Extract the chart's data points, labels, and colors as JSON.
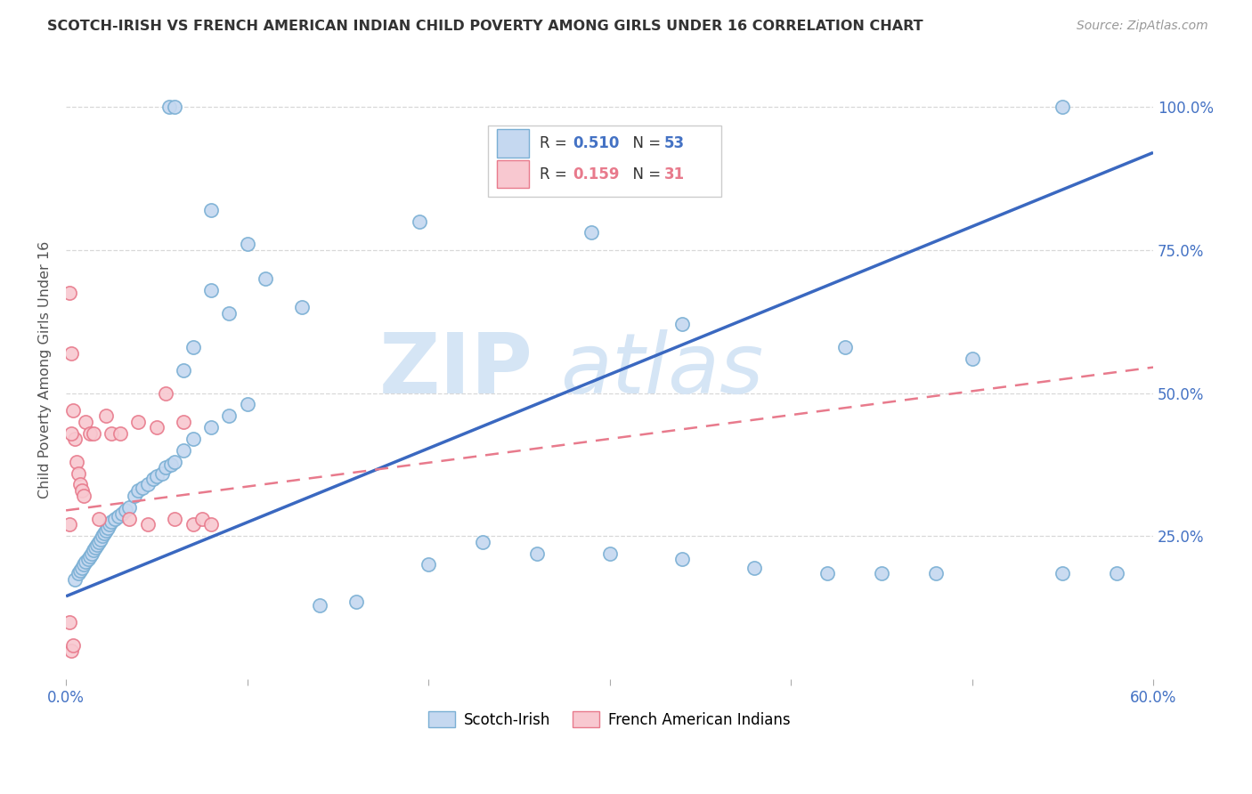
{
  "title": "SCOTCH-IRISH VS FRENCH AMERICAN INDIAN CHILD POVERTY AMONG GIRLS UNDER 16 CORRELATION CHART",
  "source": "Source: ZipAtlas.com",
  "ylabel": "Child Poverty Among Girls Under 16",
  "legend_blue_r": "0.510",
  "legend_blue_n": "53",
  "legend_pink_r": "0.159",
  "legend_pink_n": "31",
  "legend_label_blue": "Scotch-Irish",
  "legend_label_pink": "French American Indians",
  "watermark_zip": "ZIP",
  "watermark_atlas": "atlas",
  "blue_scatter_x": [
    0.005,
    0.007,
    0.008,
    0.009,
    0.01,
    0.011,
    0.012,
    0.013,
    0.014,
    0.015,
    0.016,
    0.017,
    0.018,
    0.019,
    0.02,
    0.021,
    0.022,
    0.023,
    0.024,
    0.025,
    0.027,
    0.029,
    0.031,
    0.033,
    0.035,
    0.038,
    0.04,
    0.042,
    0.045,
    0.048,
    0.05,
    0.053,
    0.055,
    0.058,
    0.06,
    0.065,
    0.07,
    0.08,
    0.09,
    0.1,
    0.14,
    0.16,
    0.2,
    0.23,
    0.26,
    0.3,
    0.34,
    0.38,
    0.42,
    0.45,
    0.48,
    0.55,
    0.58
  ],
  "blue_scatter_y": [
    0.175,
    0.185,
    0.19,
    0.195,
    0.2,
    0.205,
    0.21,
    0.215,
    0.22,
    0.225,
    0.23,
    0.235,
    0.24,
    0.245,
    0.25,
    0.255,
    0.26,
    0.265,
    0.27,
    0.275,
    0.28,
    0.285,
    0.29,
    0.295,
    0.3,
    0.32,
    0.33,
    0.335,
    0.34,
    0.35,
    0.355,
    0.36,
    0.37,
    0.375,
    0.38,
    0.4,
    0.42,
    0.44,
    0.46,
    0.48,
    0.13,
    0.135,
    0.2,
    0.24,
    0.22,
    0.22,
    0.21,
    0.195,
    0.185,
    0.185,
    0.185,
    0.185,
    0.185
  ],
  "blue_high_x": [
    0.057,
    0.06,
    0.55,
    0.08,
    0.195,
    0.29,
    0.13,
    0.34,
    0.43,
    0.5
  ],
  "blue_high_y": [
    1.0,
    1.0,
    1.0,
    0.82,
    0.8,
    0.78,
    0.65,
    0.62,
    0.58,
    0.56
  ],
  "blue_mid_x": [
    0.08,
    0.1,
    0.11,
    0.09,
    0.07,
    0.065
  ],
  "blue_mid_y": [
    0.68,
    0.76,
    0.7,
    0.64,
    0.58,
    0.54
  ],
  "pink_scatter_x": [
    0.002,
    0.003,
    0.004,
    0.005,
    0.006,
    0.007,
    0.008,
    0.009,
    0.01,
    0.011,
    0.013,
    0.015,
    0.018,
    0.022,
    0.025,
    0.03,
    0.035,
    0.04,
    0.045,
    0.05,
    0.055,
    0.06,
    0.065,
    0.07,
    0.075,
    0.08,
    0.002,
    0.003,
    0.004,
    0.002,
    0.003
  ],
  "pink_scatter_y": [
    0.675,
    0.57,
    0.47,
    0.42,
    0.38,
    0.36,
    0.34,
    0.33,
    0.32,
    0.45,
    0.43,
    0.43,
    0.28,
    0.46,
    0.43,
    0.43,
    0.28,
    0.45,
    0.27,
    0.44,
    0.5,
    0.28,
    0.45,
    0.27,
    0.28,
    0.27,
    0.1,
    0.05,
    0.06,
    0.27,
    0.43
  ],
  "blue_line_x0": 0.0,
  "blue_line_x1": 0.6,
  "blue_line_y0": 0.145,
  "blue_line_y1": 0.92,
  "pink_line_x0": 0.0,
  "pink_line_x1": 0.6,
  "pink_line_y0": 0.295,
  "pink_line_y1": 0.545,
  "blue_color": "#c5d8f0",
  "blue_edge_color": "#7aafd4",
  "pink_color": "#f8c8d0",
  "pink_edge_color": "#e87a8c",
  "blue_line_color": "#3a68c0",
  "pink_line_color": "#e87a8c",
  "background_color": "#ffffff",
  "grid_color": "#d8d8d8",
  "title_color": "#333333",
  "axis_color": "#4472c4",
  "watermark_color": "#d5e5f5",
  "xlim": [
    0.0,
    0.6
  ],
  "ylim": [
    0.0,
    1.08
  ],
  "ytick_vals": [
    0.25,
    0.5,
    0.75,
    1.0
  ],
  "ytick_labels": [
    "25.0%",
    "50.0%",
    "75.0%",
    "100.0%"
  ]
}
